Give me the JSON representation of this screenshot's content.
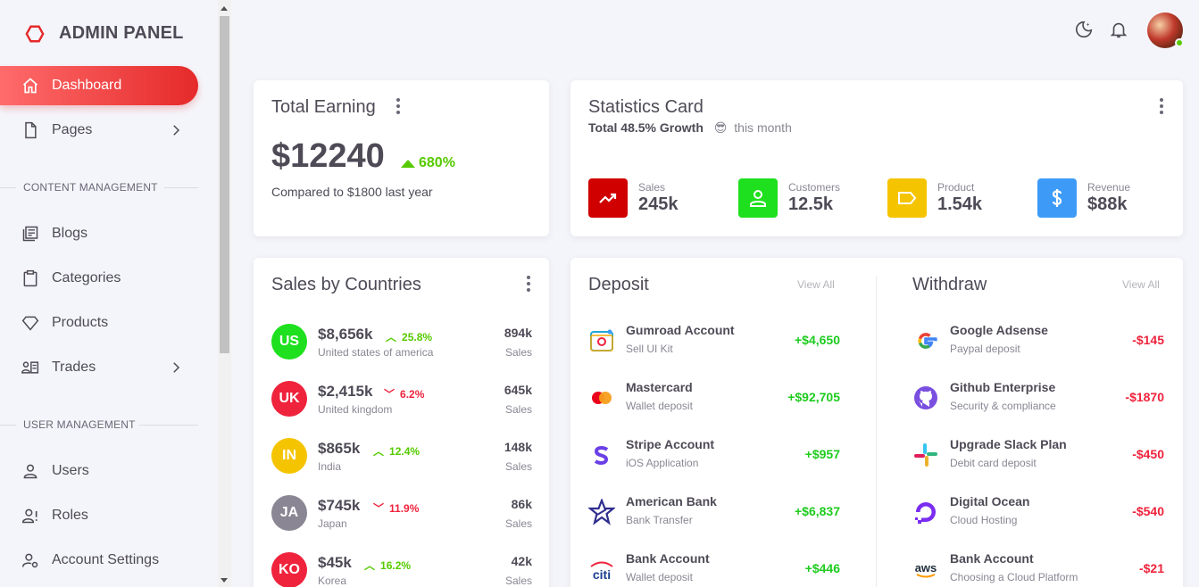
{
  "brand": {
    "name": "ADMIN PANEL",
    "accent": "#e52a2a"
  },
  "sidebar": {
    "items": [
      {
        "label": "Dashboard",
        "icon": "home-icon",
        "active": true
      },
      {
        "label": "Pages",
        "icon": "file-icon"
      },
      {
        "label": "Blogs",
        "icon": "blogs-icon"
      },
      {
        "label": "Categories",
        "icon": "clipboard-icon"
      },
      {
        "label": "Products",
        "icon": "diamond-icon"
      },
      {
        "label": "Trades",
        "icon": "trades-icon"
      },
      {
        "label": "Users",
        "icon": "user-icon"
      },
      {
        "label": "Roles",
        "icon": "user-alert-icon"
      },
      {
        "label": "Account Settings",
        "icon": "user-cog-icon"
      }
    ],
    "sections": {
      "content": "CONTENT MANAGEMENT",
      "user": "USER MANAGEMENT"
    }
  },
  "header": {
    "icons": [
      "theme-toggle-icon",
      "bell-icon",
      "avatar"
    ]
  },
  "earning": {
    "title": "Total Earning",
    "amount": "$12240",
    "growth": "680%",
    "compare": "Compared to $1800 last year"
  },
  "statistics": {
    "title": "Statistics Card",
    "growth_text": "Total 48.5% Growth",
    "emoji": "😎",
    "period": "this month",
    "items": [
      {
        "label": "Sales",
        "value": "245k",
        "color": "#d00000",
        "icon": "trending-up-icon"
      },
      {
        "label": "Customers",
        "value": "12.5k",
        "color": "#1ee01e",
        "icon": "account-icon"
      },
      {
        "label": "Product",
        "value": "1.54k",
        "color": "#f5c400",
        "icon": "label-icon"
      },
      {
        "label": "Revenue",
        "value": "$88k",
        "color": "#3d9bf7",
        "icon": "dollar-icon"
      }
    ]
  },
  "countries": {
    "title": "Sales by Countries",
    "rows": [
      {
        "code": "US",
        "amount": "$8,656k",
        "change": "25.8%",
        "trend": "up",
        "name": "United states of america",
        "sales": "894k",
        "sales_label": "Sales",
        "color": "#1ee01e"
      },
      {
        "code": "UK",
        "amount": "$2,415k",
        "change": "6.2%",
        "trend": "down",
        "name": "United kingdom",
        "sales": "645k",
        "sales_label": "Sales",
        "color": "#ef233c"
      },
      {
        "code": "IN",
        "amount": "$865k",
        "change": "12.4%",
        "trend": "up",
        "name": "India",
        "sales": "148k",
        "sales_label": "Sales",
        "color": "#f5c400"
      },
      {
        "code": "JA",
        "amount": "$745k",
        "change": "11.9%",
        "trend": "down",
        "name": "Japan",
        "sales": "86k",
        "sales_label": "Sales",
        "color": "#8a8693"
      },
      {
        "code": "KO",
        "amount": "$45k",
        "change": "16.2%",
        "trend": "up",
        "name": "Korea",
        "sales": "42k",
        "sales_label": "Sales",
        "color": "#ef233c"
      }
    ]
  },
  "deposit": {
    "title": "Deposit",
    "view_all": "View All",
    "rows": [
      {
        "title": "Gumroad Account",
        "sub": "Sell UI Kit",
        "amount": "+$4,650",
        "icon": "gumroad-icon"
      },
      {
        "title": "Mastercard",
        "sub": "Wallet deposit",
        "amount": "+$92,705",
        "icon": "mastercard-icon"
      },
      {
        "title": "Stripe Account",
        "sub": "iOS Application",
        "amount": "+$957",
        "icon": "stripe-icon"
      },
      {
        "title": "American Bank",
        "sub": "Bank Transfer",
        "amount": "+$6,837",
        "icon": "american-bank-icon"
      },
      {
        "title": "Bank Account",
        "sub": "Wallet deposit",
        "amount": "+$446",
        "icon": "citi-icon"
      }
    ]
  },
  "withdraw": {
    "title": "Withdraw",
    "view_all": "View All",
    "rows": [
      {
        "title": "Google Adsense",
        "sub": "Paypal deposit",
        "amount": "-$145",
        "icon": "google-icon"
      },
      {
        "title": "Github Enterprise",
        "sub": "Security & compliance",
        "amount": "-$1870",
        "icon": "github-icon"
      },
      {
        "title": "Upgrade Slack Plan",
        "sub": "Debit card deposit",
        "amount": "-$450",
        "icon": "slack-icon"
      },
      {
        "title": "Digital Ocean",
        "sub": "Cloud Hosting",
        "amount": "-$540",
        "icon": "digitalocean-icon"
      },
      {
        "title": "Bank Account",
        "sub": "Choosing a Cloud Platform",
        "amount": "-$21",
        "icon": "aws-icon"
      }
    ]
  },
  "colors": {
    "positive": "#1ecb1e",
    "negative": "#ef233c",
    "up": "#56ca00",
    "down": "#ef233c"
  }
}
